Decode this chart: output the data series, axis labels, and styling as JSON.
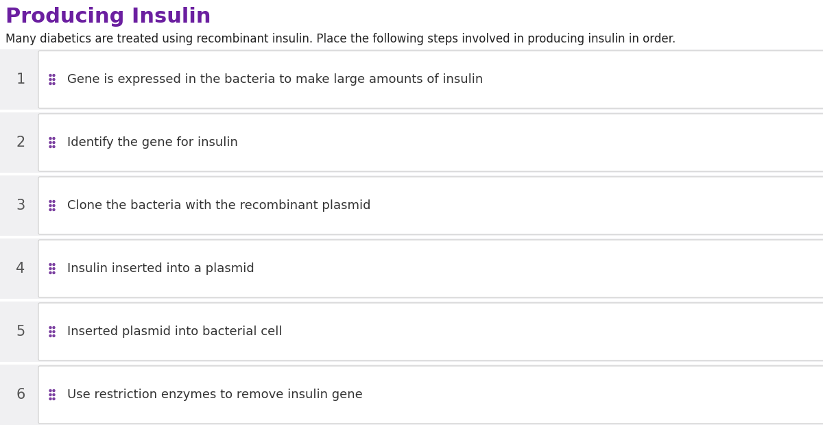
{
  "title": "Producing Insulin",
  "title_color": "#6b1fa0",
  "subtitle": "Many diabetics are treated using recombinant insulin. Place the following steps involved in producing insulin in order.",
  "subtitle_color": "#222222",
  "page_background": "#ffffff",
  "row_background": "#f0f0f2",
  "box_background": "#ffffff",
  "box_border_color": "#cccccc",
  "number_color": "#555555",
  "text_color": "#333333",
  "dot_color": "#7b3fa0",
  "steps": [
    {
      "number": "1",
      "text": "Gene is expressed in the bacteria to make large amounts of insulin"
    },
    {
      "number": "2",
      "text": "Identify the gene for insulin"
    },
    {
      "number": "3",
      "text": "Clone the bacteria with the recombinant plasmid"
    },
    {
      "number": "4",
      "text": "Insulin inserted into a plasmid"
    },
    {
      "number": "5",
      "text": "Inserted plasmid into bacterial cell"
    },
    {
      "number": "6",
      "text": "Use restriction enzymes to remove insulin gene"
    }
  ],
  "title_fontsize": 22,
  "subtitle_fontsize": 12,
  "number_fontsize": 15,
  "text_fontsize": 13
}
